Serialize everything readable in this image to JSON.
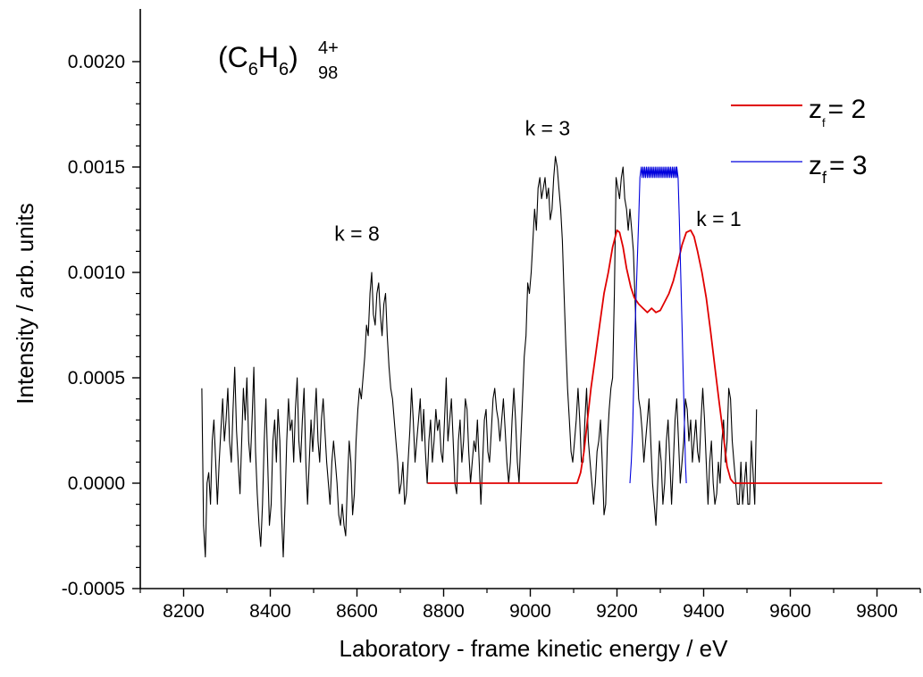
{
  "chart_data": {
    "type": "line",
    "xlabel": "Laboratory - frame kinetic energy / eV",
    "ylabel": "Intensity / arb. units",
    "xlim": [
      8100,
      9900
    ],
    "ylim": [
      -0.0005,
      0.00225
    ],
    "x_ticks": [
      8200,
      8400,
      8600,
      8800,
      9000,
      9200,
      9400,
      9600,
      9800
    ],
    "y_ticks": [
      -0.0005,
      0.0,
      0.0005,
      0.001,
      0.0015,
      0.002
    ],
    "x_tick_labels": [
      "8200",
      "8400",
      "8600",
      "8800",
      "9000",
      "9200",
      "9400",
      "9600",
      "9800"
    ],
    "y_tick_labels": [
      "-0.0005",
      "0.0000",
      "0.0005",
      "0.0010",
      "0.0015",
      "0.0020"
    ],
    "legend_position": "top-right",
    "legend": {
      "red": {
        "prefix": "z",
        "sub": "f",
        "suffix": "= 2"
      },
      "blue": {
        "prefix": "z",
        "sub": "f",
        "suffix": "= 3"
      }
    },
    "formula": {
      "open": "(C",
      "sub1": "6",
      "mid": "H",
      "sub2": "6",
      "close": ")",
      "sup": "4+",
      "sub3": "98"
    },
    "annotations": [
      {
        "text": "k = 8",
        "x": 8600,
        "y": 0.00115
      },
      {
        "text": "k = 3",
        "x": 9040,
        "y": 0.00165
      },
      {
        "text": "k = 1",
        "x": 9435,
        "y": 0.00122
      }
    ],
    "series": [
      {
        "color": "#000000",
        "x_start": 8242,
        "x_step": 4,
        "values": [
          0.00045,
          -0.0002,
          -0.00035,
          0.0,
          5e-05,
          -0.0001,
          0.0002,
          0.0003,
          0.0001,
          -0.0001,
          0.0001,
          0.00025,
          0.0004,
          0.0002,
          0.0003,
          0.00045,
          0.0002,
          0.0001,
          0.00035,
          0.00055,
          0.00025,
          0.0001,
          -5e-05,
          0.0002,
          0.00045,
          0.0003,
          0.0005,
          0.0002,
          0.0001,
          0.0003,
          0.00055,
          0.00015,
          -5e-05,
          -0.0002,
          -0.0003,
          -0.0001,
          0.0002,
          0.0004,
          0.0001,
          -0.0002,
          -0.0001,
          0.0002,
          0.0003,
          0.0001,
          0.00035,
          0.0002,
          -0.00015,
          -0.00035,
          -0.0001,
          0.0002,
          0.0004,
          0.00025,
          0.0003,
          0.0001,
          0.00035,
          0.0005,
          0.0002,
          0.0001,
          0.0003,
          0.00045,
          0.0001,
          -0.0001,
          0.0001,
          0.0003,
          0.00015,
          0.0003,
          0.00045,
          0.0002,
          0.0001,
          0.0003,
          0.0004,
          0.00025,
          0.0001,
          0.0,
          -0.0001,
          0.0001,
          0.0002,
          0.0001,
          0.0,
          -0.00015,
          -0.0002,
          -0.0001,
          -0.0002,
          -0.00025,
          0.0,
          0.0002,
          0.0001,
          -0.00015,
          -5e-05,
          0.0002,
          0.00035,
          0.00045,
          0.0004,
          0.0005,
          0.0006,
          0.00075,
          0.0007,
          0.0009,
          0.001,
          0.0008,
          0.00075,
          0.0009,
          0.00095,
          0.0008,
          0.0007,
          0.00085,
          0.0009,
          0.0007,
          0.00055,
          0.00045,
          0.0004,
          0.0003,
          0.0002,
          0.0001,
          -5e-05,
          0.0,
          0.0001,
          -0.0001,
          -5e-05,
          0.0001,
          0.00025,
          0.00045,
          0.0003,
          0.0001,
          0.0002,
          0.0003,
          0.0004,
          0.0002,
          0.00035,
          0.00015,
          0.0,
          0.0002,
          0.0003,
          0.0001,
          0.0002,
          0.00035,
          0.00025,
          0.0003,
          0.00015,
          0.0001,
          0.0003,
          0.0005,
          0.0002,
          0.0003,
          0.0004,
          0.0002,
          0.0,
          -5e-05,
          0.0002,
          0.0003,
          0.0001,
          0.0002,
          0.0004,
          0.00035,
          0.00015,
          0.0,
          0.0001,
          0.0002,
          0.00015,
          0.0003,
          0.0001,
          -0.0001,
          0.0001,
          0.0003,
          0.00035,
          0.00015,
          0.0001,
          0.00025,
          0.0004,
          0.00045,
          0.00035,
          0.0003,
          0.0002,
          0.0003,
          0.0004,
          0.00025,
          0.0001,
          0.0,
          0.0001,
          0.0003,
          0.00045,
          0.0003,
          0.0001,
          0.0,
          0.0002,
          0.0004,
          0.0006,
          0.0007,
          0.00095,
          0.0009,
          0.001,
          0.00115,
          0.0013,
          0.0012,
          0.0014,
          0.00145,
          0.00135,
          0.0014,
          0.00145,
          0.00135,
          0.0014,
          0.00125,
          0.0013,
          0.00145,
          0.00155,
          0.0015,
          0.0014,
          0.0013,
          0.00115,
          0.0009,
          0.00065,
          0.00045,
          0.0003,
          0.00015,
          0.0001,
          0.0002,
          0.0003,
          0.00045,
          0.0003,
          0.0001,
          0.0001,
          0.0003,
          0.00045,
          0.0002,
          0.0001,
          0.0,
          -0.0001,
          0.0,
          0.00015,
          0.0002,
          0.0003,
          0.0001,
          -0.00015,
          -0.0001,
          0.0002,
          0.00035,
          0.00045,
          0.0005,
          0.0009,
          0.00145,
          0.0014,
          0.00135,
          0.00145,
          0.0015,
          0.00135,
          0.0013,
          0.0012,
          0.0013,
          0.0012,
          0.0011,
          0.00085,
          0.0006,
          0.0004,
          0.00035,
          0.00025,
          0.0001,
          0.0002,
          0.0003,
          0.0004,
          0.0002,
          0.0,
          -0.0001,
          -0.0002,
          0.0,
          0.0002,
          0.0001,
          -0.0001,
          0.0,
          0.0002,
          0.0003,
          0.0001,
          -0.0001,
          0.0001,
          0.0003,
          0.0004,
          0.0002,
          0.0,
          0.0001,
          0.0002,
          0.0004,
          0.00035,
          0.0002,
          0.0003,
          0.0001,
          0.0002,
          0.0003,
          0.00015,
          0.0001,
          0.0003,
          0.00045,
          0.0003,
          0.0001,
          -0.0001,
          0.0001,
          0.0002,
          0.0,
          -0.0001,
          -5e-05,
          0.0001,
          0.0,
          0.0002,
          0.0003,
          0.0001,
          0.0002,
          0.00045,
          0.0004,
          0.0002,
          0.0001,
          0.0,
          -0.0001,
          -0.0001,
          0.0001,
          -0.0001,
          0.0,
          0.0001,
          -0.0001,
          -0.0001,
          0.0002,
          5e-05,
          -0.0001,
          0.00035
        ]
      },
      {
        "color": "#e00000",
        "points": [
          [
            8763,
            0.0
          ],
          [
            9108,
            0.0
          ],
          [
            9116,
            5e-05
          ],
          [
            9124,
            0.00015
          ],
          [
            9132,
            0.0003
          ],
          [
            9140,
            0.00045
          ],
          [
            9150,
            0.0006
          ],
          [
            9160,
            0.00075
          ],
          [
            9170,
            0.0009
          ],
          [
            9180,
            0.001
          ],
          [
            9190,
            0.00112
          ],
          [
            9200,
            0.0012
          ],
          [
            9206,
            0.00119
          ],
          [
            9214,
            0.00112
          ],
          [
            9222,
            0.00102
          ],
          [
            9232,
            0.00093
          ],
          [
            9240,
            0.00088
          ],
          [
            9250,
            0.00085
          ],
          [
            9260,
            0.00083
          ],
          [
            9270,
            0.00081
          ],
          [
            9280,
            0.00083
          ],
          [
            9290,
            0.00081
          ],
          [
            9300,
            0.00082
          ],
          [
            9310,
            0.00086
          ],
          [
            9320,
            0.0009
          ],
          [
            9330,
            0.00096
          ],
          [
            9340,
            0.00104
          ],
          [
            9350,
            0.00113
          ],
          [
            9360,
            0.00119
          ],
          [
            9370,
            0.0012
          ],
          [
            9378,
            0.00117
          ],
          [
            9386,
            0.0011
          ],
          [
            9396,
            0.001
          ],
          [
            9406,
            0.00088
          ],
          [
            9416,
            0.00072
          ],
          [
            9426,
            0.00055
          ],
          [
            9436,
            0.00038
          ],
          [
            9446,
            0.00022
          ],
          [
            9454,
            8e-05
          ],
          [
            9462,
            2e-05
          ],
          [
            9470,
            0.0
          ],
          [
            9812,
            0.0
          ]
        ]
      },
      {
        "color": "#0000dd",
        "points": [
          [
            9230,
            0.0
          ],
          [
            9233,
            0.0001
          ],
          [
            9236,
            0.00025
          ],
          [
            9239,
            0.0005
          ],
          [
            9242,
            0.00075
          ],
          [
            9246,
            0.001
          ],
          [
            9250,
            0.00125
          ],
          [
            9253,
            0.00145
          ],
          [
            9256,
            0.0015
          ],
          [
            9338,
            0.0015
          ],
          [
            9341,
            0.00145
          ],
          [
            9344,
            0.00125
          ],
          [
            9347,
            0.001
          ],
          [
            9350,
            0.00075
          ],
          [
            9353,
            0.0005
          ],
          [
            9356,
            0.00025
          ],
          [
            9358,
            0.0001
          ],
          [
            9360,
            0.0
          ]
        ],
        "plateau_range": [
          9256,
          9338
        ],
        "plateau_level": 0.0015,
        "plateau_dip": 5e-05
      }
    ]
  }
}
